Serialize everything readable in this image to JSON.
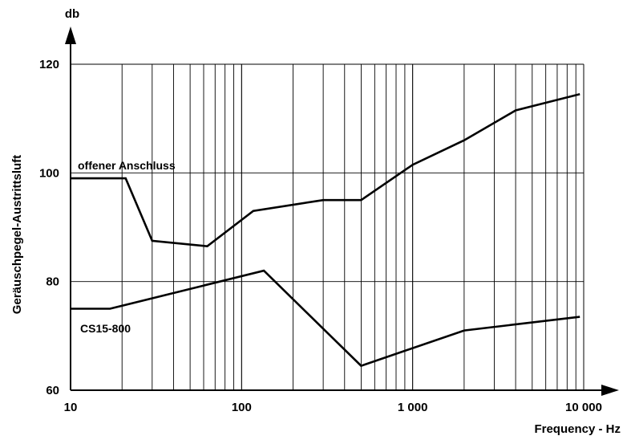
{
  "chart_data": {
    "type": "line",
    "x_scale": "log",
    "xlim": [
      10,
      10000
    ],
    "ylim": [
      60,
      120
    ],
    "grid": true,
    "ylabel": "Geräuschpegel-Austrittsluft",
    "xlabel": "Frequency - Hz",
    "y_unit": "db",
    "x_ticks": [
      {
        "value": 10,
        "label": "10"
      },
      {
        "value": 100,
        "label": "100"
      },
      {
        "value": 1000,
        "label": "1 000"
      },
      {
        "value": 10000,
        "label": "10 000"
      }
    ],
    "y_ticks": [
      {
        "value": 60,
        "label": "60"
      },
      {
        "value": 80,
        "label": "80"
      },
      {
        "value": 100,
        "label": "100"
      },
      {
        "value": 120,
        "label": "120"
      }
    ],
    "series": [
      {
        "name": "offener Anschluss",
        "x": [
          10,
          21,
          30,
          63,
          117,
          300,
          500,
          1000,
          2000,
          4000,
          9500
        ],
        "y": [
          99,
          99,
          87.5,
          86.5,
          93,
          95,
          95,
          101.5,
          106,
          111.5,
          114.5
        ]
      },
      {
        "name": "CS15-800",
        "x": [
          10,
          17,
          135,
          500,
          2000,
          9500
        ],
        "y": [
          75,
          75,
          82,
          64.5,
          71,
          73.5
        ]
      }
    ]
  }
}
